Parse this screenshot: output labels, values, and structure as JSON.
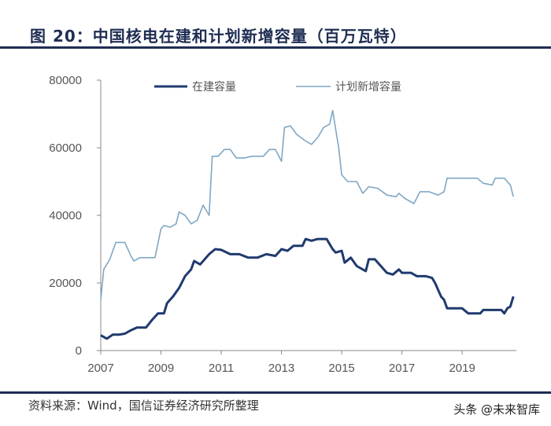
{
  "title": "图 20：中国核电在建和计划新增容量（百万瓦特）",
  "source": "资料来源：Wind，国信证券经济研究所整理",
  "watermark": "头条 @未来智库",
  "colors": {
    "under_construction": "#1f3a6e",
    "planned": "#7fa7c4",
    "axis": "#888888"
  },
  "chart_data": {
    "type": "line",
    "xlabel": "",
    "ylabel": "",
    "ylim": [
      0,
      80000
    ],
    "xlim": [
      2007,
      2020.8
    ],
    "x_ticks": [
      2007,
      2009,
      2011,
      2013,
      2015,
      2017,
      2019
    ],
    "y_ticks": [
      0,
      20000,
      40000,
      60000,
      80000
    ],
    "legend_placement": "top-center",
    "grid": false,
    "series": [
      {
        "name": "在建容量",
        "color": "#1f3a6e",
        "points": [
          [
            2007.0,
            4500
          ],
          [
            2007.2,
            3500
          ],
          [
            2007.4,
            4700
          ],
          [
            2007.6,
            4700
          ],
          [
            2007.8,
            5000
          ],
          [
            2008.0,
            6000
          ],
          [
            2008.2,
            6800
          ],
          [
            2008.5,
            6800
          ],
          [
            2008.7,
            9000
          ],
          [
            2008.9,
            11000
          ],
          [
            2009.1,
            11000
          ],
          [
            2009.2,
            14000
          ],
          [
            2009.4,
            16000
          ],
          [
            2009.6,
            18500
          ],
          [
            2009.8,
            22000
          ],
          [
            2010.0,
            24000
          ],
          [
            2010.1,
            26500
          ],
          [
            2010.3,
            25500
          ],
          [
            2010.5,
            27500
          ],
          [
            2010.6,
            28500
          ],
          [
            2010.8,
            30000
          ],
          [
            2011.0,
            29800
          ],
          [
            2011.3,
            28500
          ],
          [
            2011.6,
            28500
          ],
          [
            2011.9,
            27500
          ],
          [
            2012.2,
            27500
          ],
          [
            2012.5,
            28500
          ],
          [
            2012.8,
            28000
          ],
          [
            2013.0,
            30000
          ],
          [
            2013.2,
            29500
          ],
          [
            2013.4,
            31000
          ],
          [
            2013.7,
            31000
          ],
          [
            2013.8,
            33000
          ],
          [
            2014.0,
            32500
          ],
          [
            2014.2,
            33000
          ],
          [
            2014.5,
            33000
          ],
          [
            2014.7,
            30000
          ],
          [
            2014.8,
            29000
          ],
          [
            2015.0,
            29500
          ],
          [
            2015.1,
            26000
          ],
          [
            2015.3,
            27500
          ],
          [
            2015.5,
            25000
          ],
          [
            2015.7,
            24000
          ],
          [
            2015.8,
            23500
          ],
          [
            2015.9,
            27000
          ],
          [
            2016.1,
            27000
          ],
          [
            2016.3,
            25000
          ],
          [
            2016.5,
            23000
          ],
          [
            2016.7,
            22500
          ],
          [
            2016.9,
            24000
          ],
          [
            2017.0,
            23000
          ],
          [
            2017.3,
            23000
          ],
          [
            2017.5,
            22000
          ],
          [
            2017.8,
            22000
          ],
          [
            2018.0,
            21500
          ],
          [
            2018.1,
            20000
          ],
          [
            2018.3,
            16000
          ],
          [
            2018.4,
            15000
          ],
          [
            2018.5,
            12500
          ],
          [
            2018.9,
            12500
          ],
          [
            2019.0,
            12500
          ],
          [
            2019.2,
            11000
          ],
          [
            2019.6,
            11000
          ],
          [
            2019.7,
            12000
          ],
          [
            2020.0,
            12000
          ],
          [
            2020.3,
            12000
          ],
          [
            2020.4,
            11000
          ],
          [
            2020.5,
            12500
          ],
          [
            2020.6,
            13000
          ],
          [
            2020.7,
            16000
          ]
        ]
      },
      {
        "name": "计划新增容量",
        "color": "#7fa7c4",
        "points": [
          [
            2007.0,
            15000
          ],
          [
            2007.1,
            24000
          ],
          [
            2007.3,
            27000
          ],
          [
            2007.5,
            32000
          ],
          [
            2007.8,
            32000
          ],
          [
            2008.0,
            28000
          ],
          [
            2008.1,
            26500
          ],
          [
            2008.3,
            27500
          ],
          [
            2008.8,
            27500
          ],
          [
            2009.0,
            36000
          ],
          [
            2009.1,
            37000
          ],
          [
            2009.3,
            36500
          ],
          [
            2009.5,
            37500
          ],
          [
            2009.6,
            41000
          ],
          [
            2009.8,
            40000
          ],
          [
            2010.0,
            37500
          ],
          [
            2010.2,
            38500
          ],
          [
            2010.4,
            43000
          ],
          [
            2010.6,
            40000
          ],
          [
            2010.7,
            57500
          ],
          [
            2010.9,
            57500
          ],
          [
            2011.1,
            59500
          ],
          [
            2011.3,
            59500
          ],
          [
            2011.5,
            57000
          ],
          [
            2011.8,
            57000
          ],
          [
            2012.0,
            57500
          ],
          [
            2012.4,
            57500
          ],
          [
            2012.6,
            59500
          ],
          [
            2012.8,
            59500
          ],
          [
            2013.0,
            56000
          ],
          [
            2013.1,
            66000
          ],
          [
            2013.3,
            66500
          ],
          [
            2013.5,
            64000
          ],
          [
            2013.8,
            62000
          ],
          [
            2014.0,
            61000
          ],
          [
            2014.2,
            63000
          ],
          [
            2014.4,
            66000
          ],
          [
            2014.6,
            67000
          ],
          [
            2014.7,
            71000
          ],
          [
            2014.9,
            60000
          ],
          [
            2015.0,
            52000
          ],
          [
            2015.2,
            50000
          ],
          [
            2015.5,
            50000
          ],
          [
            2015.7,
            46500
          ],
          [
            2015.9,
            48500
          ],
          [
            2016.2,
            48000
          ],
          [
            2016.5,
            46000
          ],
          [
            2016.8,
            45500
          ],
          [
            2016.9,
            46500
          ],
          [
            2017.1,
            45000
          ],
          [
            2017.4,
            43500
          ],
          [
            2017.6,
            47000
          ],
          [
            2017.9,
            47000
          ],
          [
            2018.2,
            46000
          ],
          [
            2018.4,
            47000
          ],
          [
            2018.5,
            51000
          ],
          [
            2018.8,
            51000
          ],
          [
            2019.2,
            51000
          ],
          [
            2019.5,
            51000
          ],
          [
            2019.7,
            49500
          ],
          [
            2020.0,
            49000
          ],
          [
            2020.1,
            51000
          ],
          [
            2020.4,
            51000
          ],
          [
            2020.6,
            49000
          ],
          [
            2020.7,
            45500
          ]
        ]
      }
    ]
  }
}
